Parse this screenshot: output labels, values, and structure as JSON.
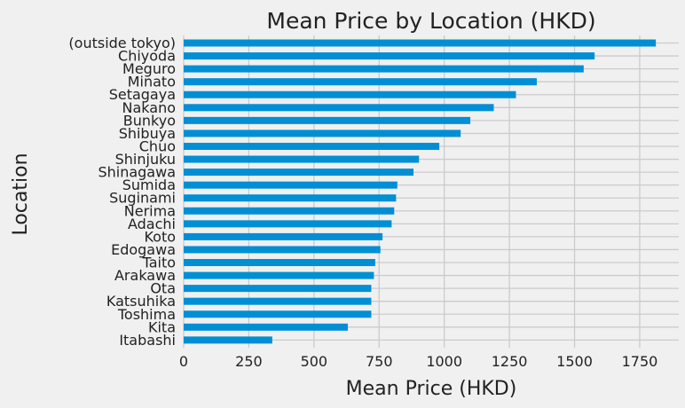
{
  "chart_data": {
    "type": "bar",
    "orientation": "horizontal",
    "title": "Mean Price by Location (HKD)",
    "xlabel": "Mean Price (HKD)",
    "ylabel": "Location",
    "xlim": [
      0,
      1900
    ],
    "xticks": [
      0,
      250,
      500,
      750,
      1000,
      1250,
      1500,
      1750
    ],
    "grid": true,
    "bar_color": "#008fd5",
    "background_color": "#f0f0f0",
    "grid_color": "#cbcbcb",
    "categories": [
      "(outside tokyo)",
      "Chiyoda",
      "Meguro",
      "Minato",
      "Setagaya",
      "Nakano",
      "Bunkyo",
      "Shibuya",
      "Chuo",
      "Shinjuku",
      "Shinagawa",
      "Sumida",
      "Suginami",
      "Nerima",
      "Adachi",
      "Koto",
      "Edogawa",
      "Taito",
      "Arakawa",
      "Ota",
      "Katsuhika",
      "Toshima",
      "Kita",
      "Itabashi"
    ],
    "values": [
      1812,
      1577,
      1535,
      1355,
      1275,
      1190,
      1100,
      1063,
      981,
      903,
      882,
      820,
      815,
      808,
      798,
      763,
      755,
      735,
      730,
      720,
      720,
      720,
      630,
      340
    ]
  }
}
